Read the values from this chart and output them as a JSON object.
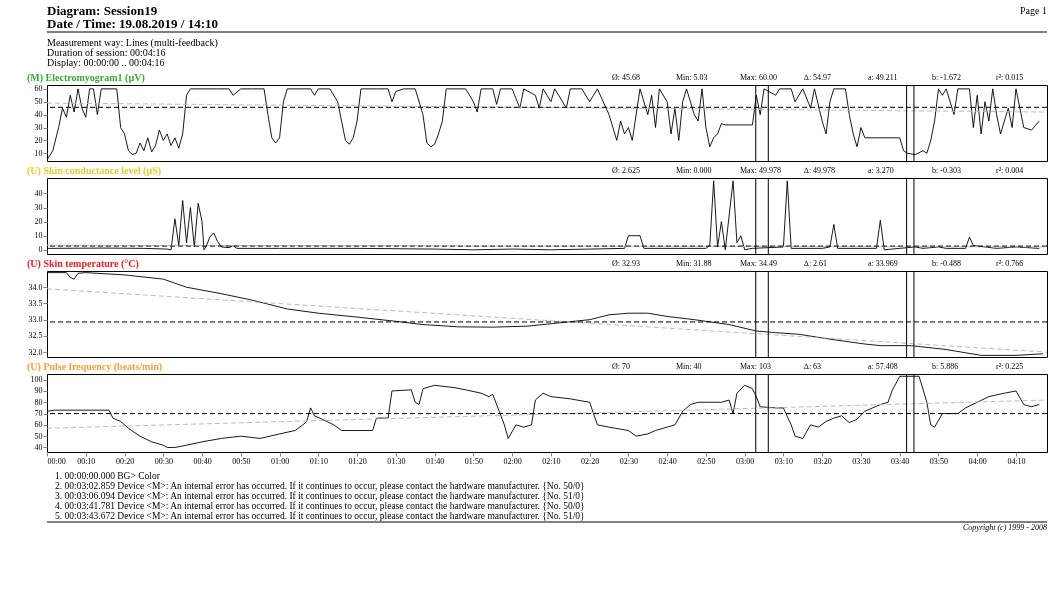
{
  "chart_data": [
    {
      "type": "other",
      "annotations": [
        "Diagram: Session19",
        "Date / Time: 19.08.2019 / 14:10",
        "Page 1",
        "Measurement way: Lines (multi-feedback)",
        "Duration of session: 00:04:16",
        "Display: 00:00:00 .. 00:04:16"
      ]
    },
    {
      "type": "line",
      "title": "(M) Electromyogram1 (µV)",
      "xlim": [
        0,
        258
      ],
      "ylim": [
        4,
        63
      ],
      "yticks": [
        10,
        20,
        30,
        40,
        50,
        60
      ],
      "tick_labels": "y",
      "grid": false,
      "annotations": [
        "Ø: 45.68",
        "Min: 5.03",
        "Max: 60.00",
        "∆: 54.97",
        "a: 49.211",
        "b: -1.672",
        "r²: 0.015"
      ],
      "ref_lines": [
        {
          "axis": "y",
          "value": 45.68,
          "line_style": "dashed"
        },
        {
          "axis": "x",
          "value": 182.859
        },
        {
          "axis": "x",
          "value": 186.094
        },
        {
          "axis": "x",
          "value": 221.781
        },
        {
          "axis": "x",
          "value": 223.672
        }
      ],
      "series": [
        {
          "color": "#000000",
          "x": [
            0,
            1.5,
            3,
            4,
            5,
            6,
            7,
            8,
            9,
            10,
            11,
            12,
            13,
            14,
            16,
            18,
            19,
            20,
            21,
            22,
            23,
            24,
            25,
            26,
            27,
            28,
            29,
            30,
            31,
            32,
            33,
            34,
            35,
            36,
            37,
            40,
            44,
            47,
            48,
            50,
            53,
            56,
            57,
            58,
            59,
            60,
            61,
            62,
            65,
            68,
            69,
            70,
            73,
            75,
            76,
            77,
            78,
            79,
            80,
            81,
            85,
            88,
            89,
            90,
            92,
            95,
            97,
            98,
            99,
            100,
            101,
            102,
            103,
            108,
            110,
            111,
            112,
            115,
            116,
            117,
            120,
            122,
            123,
            126,
            127,
            128,
            130,
            131,
            134,
            135,
            138,
            140,
            141,
            142,
            145,
            146,
            147,
            148,
            149,
            150,
            151,
            152,
            153,
            155,
            156,
            157,
            158,
            160,
            161,
            162,
            163,
            164,
            165,
            167,
            168,
            169,
            170,
            171,
            172,
            173,
            174,
            175,
            182,
            183,
            184,
            185,
            188,
            189,
            192,
            193,
            195,
            197,
            198,
            200,
            201,
            202,
            203,
            206,
            207,
            208,
            209,
            210,
            211,
            213,
            220,
            221,
            222,
            224,
            226,
            227,
            228,
            229,
            230,
            231,
            232,
            234,
            235,
            236,
            238,
            239,
            240,
            241,
            242,
            243,
            244,
            245,
            246,
            248,
            249,
            250,
            252,
            254,
            256
          ],
          "values": [
            5,
            12,
            30,
            45,
            38,
            55,
            42,
            60,
            45,
            38,
            60,
            60,
            40,
            60,
            60,
            60,
            30,
            25,
            12,
            9,
            10,
            18,
            12,
            22,
            11,
            16,
            28,
            20,
            25,
            16,
            22,
            14,
            25,
            55,
            60,
            60,
            60,
            60,
            55,
            60,
            60,
            60,
            40,
            22,
            18,
            22,
            50,
            60,
            60,
            60,
            55,
            60,
            60,
            50,
            35,
            20,
            17,
            22,
            35,
            60,
            60,
            60,
            50,
            58,
            60,
            60,
            40,
            18,
            15,
            17,
            25,
            35,
            60,
            60,
            50,
            42,
            60,
            60,
            48,
            60,
            60,
            45,
            60,
            55,
            45,
            60,
            50,
            60,
            45,
            60,
            60,
            50,
            55,
            60,
            40,
            30,
            20,
            35,
            25,
            30,
            20,
            40,
            60,
            40,
            55,
            30,
            60,
            50,
            25,
            45,
            20,
            50,
            60,
            40,
            35,
            60,
            30,
            15,
            22,
            25,
            33,
            32,
            32,
            55,
            40,
            60,
            55,
            60,
            60,
            50,
            60,
            45,
            60,
            35,
            25,
            50,
            60,
            60,
            40,
            25,
            15,
            30,
            22,
            22,
            22,
            12,
            10,
            9,
            12,
            10,
            20,
            35,
            60,
            55,
            60,
            40,
            60,
            60,
            60,
            30,
            55,
            25,
            50,
            35,
            60,
            40,
            25,
            45,
            30,
            60,
            30,
            28,
            35
          ]
        },
        {
          "type": "line",
          "line_style": "dashed",
          "color": "#b4b4b4",
          "x": [
            0,
            258
          ],
          "values": [
            49,
            42
          ]
        }
      ]
    },
    {
      "type": "line",
      "title": "(U) Skin conductance level (µS)",
      "xlim": [
        0,
        258
      ],
      "ylim": [
        -3,
        51
      ],
      "yticks": [
        0,
        10,
        20,
        30,
        40
      ],
      "tick_labels": "y",
      "grid": false,
      "annotations": [
        "Ø: 2.625",
        "Min: 0.000",
        "Max: 49.978",
        "∆: 49.978",
        "a: 3.270",
        "b: -0.303",
        "r²: 0.004"
      ],
      "ref_lines": [
        {
          "axis": "y",
          "value": 2.625,
          "line_style": "dashed"
        },
        {
          "axis": "x",
          "value": 182.859
        },
        {
          "axis": "x",
          "value": 186.094
        },
        {
          "axis": "x",
          "value": 221.781
        },
        {
          "axis": "x",
          "value": 223.672
        }
      ],
      "series": [
        {
          "color": "#000000",
          "x": [
            0,
            15,
            25,
            31,
            32,
            33,
            34,
            35,
            36,
            37,
            38,
            39,
            40,
            40.5,
            41,
            42,
            43,
            44,
            45,
            47,
            48,
            49,
            60,
            80,
            100,
            110,
            120,
            130,
            140,
            149,
            150,
            153,
            154,
            165,
            170,
            171,
            172,
            173,
            174,
            175,
            177,
            178,
            179,
            180,
            182,
            190,
            191,
            192,
            200,
            202,
            203,
            204,
            214,
            215,
            216,
            220,
            224,
            226,
            230,
            232,
            237,
            238,
            239,
            245,
            250,
            256
          ],
          "values": [
            1,
            1.2,
            1,
            0.5,
            0,
            22,
            3,
            35,
            5,
            30,
            2,
            33,
            20,
            0,
            2,
            9,
            12,
            6,
            2,
            1.5,
            3,
            1,
            1,
            1,
            0.5,
            0,
            0.5,
            0,
            0.5,
            1,
            10,
            10,
            1,
            1,
            1,
            3,
            49,
            2,
            20,
            0,
            49,
            5,
            10,
            0,
            1,
            2,
            49,
            1,
            1,
            2,
            18,
            1,
            1,
            21,
            0,
            1,
            2,
            1,
            2,
            1,
            1,
            9,
            3,
            1,
            2,
            1
          ]
        },
        {
          "type": "line",
          "line_style": "dashed",
          "color": "#b4b4b4",
          "x": [
            0,
            258
          ],
          "values": [
            3.3,
            2.0
          ]
        }
      ]
    },
    {
      "type": "line",
      "title": "(U) Skin temperature (°C)",
      "xlim": [
        0,
        258
      ],
      "ylim": [
        31.85,
        34.5
      ],
      "yticks": [
        {
          "value": 32,
          "label": "32.0"
        },
        32.5,
        {
          "value": 33,
          "label": "33.0"
        },
        33.5,
        {
          "value": 34,
          "label": "34.0"
        }
      ],
      "tick_labels": "y",
      "grid": false,
      "annotations": [
        "Ø: 32.93",
        "Min: 31.88",
        "Max: 34.49",
        "∆: 2.61",
        "a: 33.969",
        "b: -0.488",
        "r²: 0.766"
      ],
      "ref_lines": [
        {
          "axis": "y",
          "value": 32.93,
          "line_style": "dashed"
        },
        {
          "axis": "x",
          "value": 182.859
        },
        {
          "axis": "x",
          "value": 186.094
        },
        {
          "axis": "x",
          "value": 221.781
        },
        {
          "axis": "x",
          "value": 223.672
        }
      ],
      "series": [
        {
          "color": "#000000",
          "x": [
            0,
            5,
            6,
            7,
            8,
            10,
            20,
            30,
            36,
            45,
            53,
            62,
            70,
            80,
            90,
            97,
            106,
            115,
            124,
            132,
            140,
            145,
            150,
            155,
            160,
            167,
            176,
            183,
            188,
            194,
            202,
            211,
            215,
            223,
            232,
            241,
            250,
            257
          ],
          "values": [
            34.45,
            34.45,
            34.3,
            34.25,
            34.43,
            34.45,
            34.38,
            34.25,
            34.0,
            33.8,
            33.6,
            33.33,
            33.2,
            33.08,
            32.95,
            32.85,
            32.78,
            32.77,
            32.8,
            32.9,
            33.0,
            33.15,
            33.2,
            33.2,
            33.1,
            33.0,
            32.85,
            32.65,
            32.6,
            32.55,
            32.4,
            32.25,
            32.2,
            32.2,
            32.08,
            31.9,
            31.9,
            31.95
          ]
        },
        {
          "type": "line",
          "line_style": "dashed",
          "color": "#b4b4b4",
          "x": [
            0,
            258
          ],
          "values": [
            33.95,
            32.0
          ]
        }
      ]
    },
    {
      "type": "line",
      "title": "(U) Pulse frequency (beats/min)",
      "xlim": [
        0,
        258
      ],
      "ylim": [
        36,
        105
      ],
      "yticks": [
        40,
        50,
        60,
        70,
        80,
        90,
        100
      ],
      "grid": false,
      "xticks": [
        {
          "value": 0,
          "label": "00:00"
        },
        {
          "value": 10,
          "label": "00:10"
        },
        {
          "value": 20,
          "label": "00:20"
        },
        {
          "value": 30,
          "label": "00:30"
        },
        {
          "value": 40,
          "label": "00:40"
        },
        {
          "value": 50,
          "label": "00:50"
        },
        {
          "value": 60,
          "label": "01:00"
        },
        {
          "value": 70,
          "label": "01:10"
        },
        {
          "value": 80,
          "label": "01:20"
        },
        {
          "value": 90,
          "label": "01:30"
        },
        {
          "value": 100,
          "label": "01:40"
        },
        {
          "value": 110,
          "label": "01:50"
        },
        {
          "value": 120,
          "label": "02:00"
        },
        {
          "value": 130,
          "label": "02:10"
        },
        {
          "value": 140,
          "label": "02:20"
        },
        {
          "value": 150,
          "label": "02:30"
        },
        {
          "value": 160,
          "label": "02:40"
        },
        {
          "value": 170,
          "label": "02:50"
        },
        {
          "value": 180,
          "label": "03:00"
        },
        {
          "value": 190,
          "label": "03:10"
        },
        {
          "value": 200,
          "label": "03:20"
        },
        {
          "value": 210,
          "label": "03:30"
        },
        {
          "value": 220,
          "label": "03:40"
        },
        {
          "value": 230,
          "label": "03:50"
        },
        {
          "value": 240,
          "label": "04:00"
        },
        {
          "value": 250,
          "label": "04:10"
        }
      ],
      "annotations": [
        "Ø: 70",
        "Min: 40",
        "Max: 103",
        "∆: 63",
        "a: 57.408",
        "b: 5.886",
        "r²: 0.225"
      ],
      "ref_lines": [
        {
          "axis": "y",
          "value": 70,
          "line_style": "dashed"
        },
        {
          "axis": "x",
          "value": 182.859
        },
        {
          "axis": "x",
          "value": 186.094
        },
        {
          "axis": "x",
          "value": 221.781
        },
        {
          "axis": "x",
          "value": 223.672
        }
      ],
      "series": [
        {
          "color": "#000000",
          "x": [
            0,
            2,
            16,
            17,
            19,
            21,
            24,
            27,
            30,
            31,
            33,
            36,
            40,
            45,
            50,
            55,
            60,
            64,
            66,
            67,
            68,
            69,
            71,
            74,
            76,
            80,
            84,
            85,
            88,
            89,
            94,
            95,
            96,
            97,
            100,
            105,
            108,
            112,
            114,
            115,
            118,
            119,
            121,
            123,
            125,
            126,
            128,
            130,
            135,
            140,
            142,
            145,
            150,
            152,
            155,
            157,
            160,
            162,
            164,
            166,
            168,
            170,
            174,
            176,
            177,
            178,
            180,
            182,
            183,
            184,
            188,
            190,
            192,
            193,
            195,
            197,
            199,
            201,
            203,
            205,
            207,
            209,
            211,
            213,
            215,
            217,
            218,
            220,
            225,
            227,
            228,
            229,
            231,
            235,
            237,
            240,
            243,
            247,
            250,
            252,
            254,
            256
          ],
          "values": [
            72,
            73,
            73,
            66,
            63,
            57,
            50,
            45,
            42,
            40,
            40,
            42,
            45,
            48,
            50,
            48,
            52,
            55,
            60,
            63,
            75,
            68,
            65,
            60,
            55,
            55,
            55,
            66,
            66,
            90,
            91,
            80,
            78,
            92,
            95,
            93,
            91,
            88,
            85,
            87,
            60,
            48,
            60,
            58,
            60,
            82,
            88,
            85,
            83,
            80,
            60,
            58,
            55,
            50,
            52,
            55,
            58,
            60,
            72,
            78,
            80,
            80,
            80,
            82,
            70,
            88,
            95,
            92,
            85,
            76,
            75,
            75,
            60,
            50,
            48,
            60,
            58,
            63,
            66,
            68,
            62,
            65,
            72,
            75,
            78,
            80,
            90,
            103,
            103,
            80,
            60,
            58,
            70,
            70,
            75,
            80,
            85,
            88,
            90,
            78,
            76,
            78
          ]
        },
        {
          "type": "line",
          "line_style": "dashed",
          "color": "#b4b4b4",
          "x": [
            0,
            258
          ],
          "values": [
            57,
            82
          ]
        }
      ]
    },
    {
      "type": "other",
      "annotations": [
        "1. 00:00:00.000 BG> Color",
        "2. 00:03:02.859 Device <M>: An internal error has occurred. If it continues to occur, please contact the hardware manufacturer. {No. 50/0}",
        "3. 00:03:06.094 Device <M>: An internal error has occurred. If it continues to occur, please contact the hardware manufacturer. {No. 51/0}",
        "4. 00:03:41.781 Device <M>: An internal error has occurred. If it continues to occur, please contact the hardware manufacturer. {No. 50/0}",
        "5. 00:03:43.672 Device <M>: An internal error has occurred. If it continues to occur, please contact the hardware manufacturer. {No. 51/0}",
        "Copyright (c) 1999 - 2008"
      ]
    }
  ]
}
